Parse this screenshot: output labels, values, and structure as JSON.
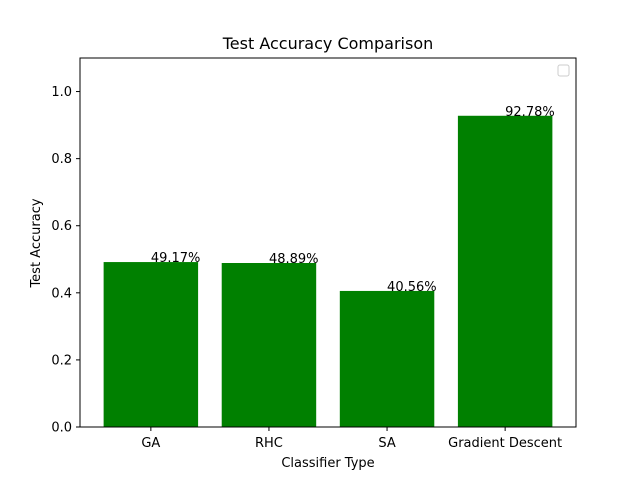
{
  "chart_data": {
    "type": "bar",
    "title": "Test Accuracy Comparison",
    "xlabel": "Classifier Type",
    "ylabel": "Test Accuracy",
    "categories": [
      "GA",
      "RHC",
      "SA",
      "Gradient Descent"
    ],
    "values": [
      0.4917,
      0.4889,
      0.4056,
      0.9278
    ],
    "data_labels": [
      "49.17%",
      "48.89%",
      "40.56%",
      "92.78%"
    ],
    "ylim": [
      0,
      1.1
    ],
    "yticks": [
      0.0,
      0.2,
      0.4,
      0.6,
      0.8,
      1.0
    ],
    "ytick_labels": [
      "0.0",
      "0.2",
      "0.4",
      "0.6",
      "0.8",
      "1.0"
    ],
    "bar_color": "#008000",
    "grid": false,
    "legend": {
      "placement": "top-right",
      "entries": []
    }
  }
}
